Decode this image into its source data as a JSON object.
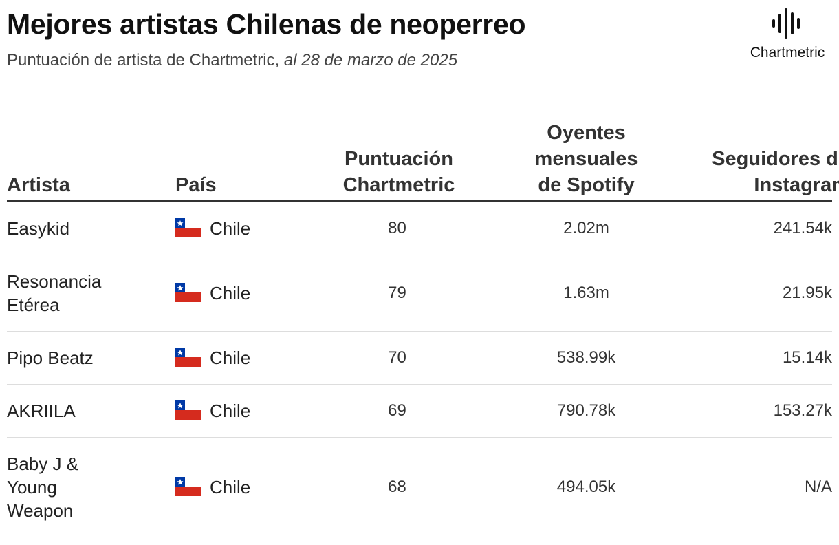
{
  "header": {
    "title": "Mejores artistas Chilenas de neoperreo",
    "subtitle": "Puntuación de artista de Chartmetric,",
    "subtitle_date": "al 28 de marzo de 2025"
  },
  "logo": {
    "text": "Chartmetric"
  },
  "table": {
    "columns": [
      "Artista",
      "País",
      "Puntuación Chartmetric",
      "Oyentes mensuales de Spotify",
      "Seguidores de Instagram"
    ],
    "rows": [
      [
        "Easykid",
        "Chile",
        80,
        "2.02m",
        "241.54k"
      ],
      [
        "Resonancia Etérea",
        "Chile",
        79,
        "1.63m",
        "21.95k"
      ],
      [
        "Pipo Beatz",
        "Chile",
        70,
        "538.99k",
        "15.14k"
      ],
      [
        "AKRIILA",
        "Chile",
        69,
        "790.78k",
        "153.27k"
      ],
      [
        "Baby J & Young Weapon",
        "Chile",
        68,
        "494.05k",
        "N/A"
      ]
    ]
  }
}
